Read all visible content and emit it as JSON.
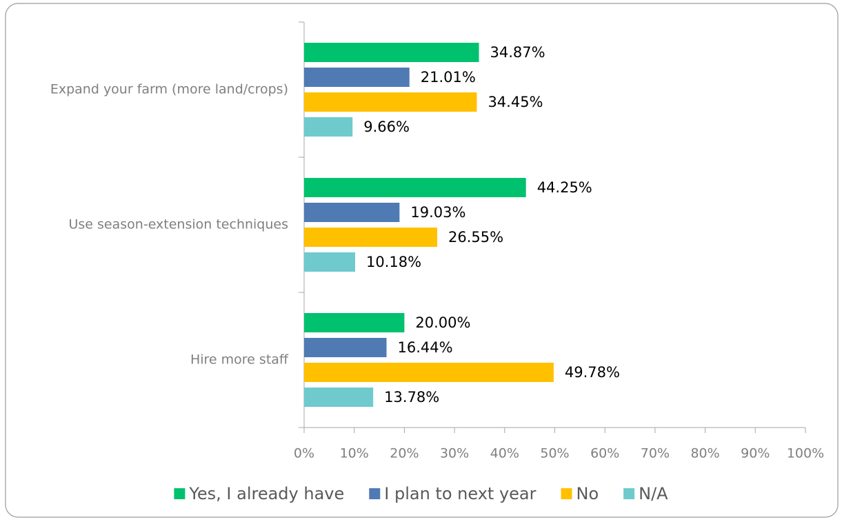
{
  "chart_data": {
    "type": "hbar",
    "categories": [
      "Expand your farm (more land/crops)",
      "Use season-extension techniques",
      "Hire more staff"
    ],
    "series": [
      {
        "name": "Yes, I already have",
        "color": "#00c16e",
        "values": [
          34.87,
          44.25,
          20.0
        ],
        "value_labels": [
          "34.87%",
          "44.25%",
          "20.00%"
        ]
      },
      {
        "name": "I plan to next year",
        "color": "#4f7ab4",
        "values": [
          21.01,
          19.03,
          16.44
        ],
        "value_labels": [
          "21.01%",
          "19.03%",
          "16.44%"
        ]
      },
      {
        "name": "No",
        "color": "#ffc000",
        "values": [
          34.45,
          26.55,
          49.78
        ],
        "value_labels": [
          "34.45%",
          "26.55%",
          "49.78%"
        ]
      },
      {
        "name": "N/A",
        "color": "#6ecacd",
        "values": [
          9.66,
          10.18,
          13.78
        ],
        "value_labels": [
          "9.66%",
          "10.18%",
          "13.78%"
        ]
      }
    ],
    "xlim": [
      0,
      100
    ],
    "xticks": [
      {
        "value": 0,
        "label": "0%"
      },
      {
        "value": 10,
        "label": "10%"
      },
      {
        "value": 20,
        "label": "20%"
      },
      {
        "value": 30,
        "label": "30%"
      },
      {
        "value": 40,
        "label": "40%"
      },
      {
        "value": 50,
        "label": "50%"
      },
      {
        "value": 60,
        "label": "60%"
      },
      {
        "value": 70,
        "label": "70%"
      },
      {
        "value": 80,
        "label": "80%"
      },
      {
        "value": 90,
        "label": "90%"
      },
      {
        "value": 100,
        "label": "100%"
      }
    ],
    "legend": "bottom"
  }
}
